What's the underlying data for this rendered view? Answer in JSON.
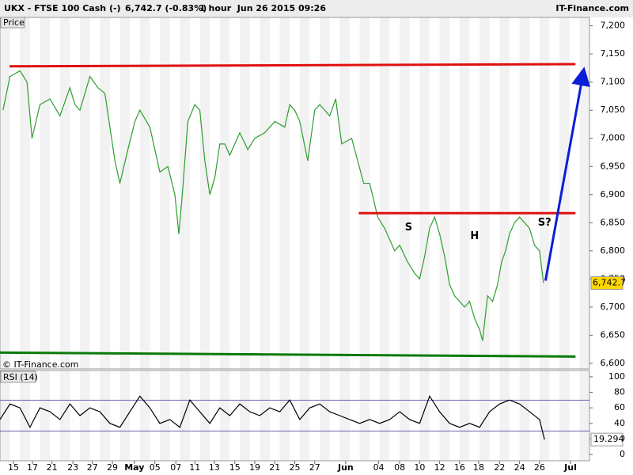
{
  "chart_data": [
    {
      "type": "line",
      "title": "UKX - FTSE 100 Cash (-)",
      "quote": "6,742.7 (-0.83%)",
      "timeframe": "1 hour  Jun 26 2015 09:26",
      "source": "IT-Finance.com",
      "panel_label": "Price",
      "watermark": "© IT-Finance.com",
      "xlim": [
        0,
        59
      ],
      "ylim": [
        6590,
        7215
      ],
      "yticks": [
        {
          "value": 6600,
          "label": "6,600"
        },
        {
          "value": 6650,
          "label": "6,650"
        },
        {
          "value": 6700,
          "label": "6,700"
        },
        {
          "value": 6750,
          "label": "6,750"
        },
        {
          "value": 6800,
          "label": "6,800"
        },
        {
          "value": 6850,
          "label": "6,850"
        },
        {
          "value": 6900,
          "label": "6,900"
        },
        {
          "value": 6950,
          "label": "6,950"
        },
        {
          "value": 7000,
          "label": "7,000"
        },
        {
          "value": 7050,
          "label": "7,050"
        },
        {
          "value": 7100,
          "label": "7,100"
        },
        {
          "value": 7150,
          "label": "7,150"
        },
        {
          "value": 7200,
          "label": "7,200"
        }
      ],
      "xticks": [
        {
          "value": 1.35,
          "label": "15"
        },
        {
          "value": 3.25,
          "label": "17"
        },
        {
          "value": 5.2,
          "label": "21"
        },
        {
          "value": 7.3,
          "label": "23"
        },
        {
          "value": 9.25,
          "label": "27"
        },
        {
          "value": 11.25,
          "label": "29"
        },
        {
          "value": 13.45,
          "label": "May"
        },
        {
          "value": 15.5,
          "label": "05"
        },
        {
          "value": 17.6,
          "label": "07"
        },
        {
          "value": 19.5,
          "label": "11"
        },
        {
          "value": 21.45,
          "label": "13"
        },
        {
          "value": 23.5,
          "label": "15"
        },
        {
          "value": 25.5,
          "label": "19"
        },
        {
          "value": 27.5,
          "label": "21"
        },
        {
          "value": 29.5,
          "label": "25"
        },
        {
          "value": 31.5,
          "label": "27"
        },
        {
          "value": 34.6,
          "label": "Jun"
        },
        {
          "value": 37.9,
          "label": "04"
        },
        {
          "value": 40,
          "label": "08"
        },
        {
          "value": 42,
          "label": "10"
        },
        {
          "value": 44,
          "label": "12"
        },
        {
          "value": 46,
          "label": "16"
        },
        {
          "value": 47.9,
          "label": "18"
        },
        {
          "value": 50,
          "label": "22"
        },
        {
          "value": 52,
          "label": "24"
        },
        {
          "value": 54,
          "label": "26"
        },
        {
          "value": 57.1,
          "label": "Jul"
        }
      ],
      "series": [
        {
          "color": "#2e9e2e",
          "x": [
            0.3,
            1,
            2,
            2.7,
            3.2,
            4,
            5,
            6,
            7,
            7.5,
            8,
            9,
            9.8,
            10.5,
            11.5,
            12,
            12.8,
            13.5,
            14,
            15,
            16,
            16.8,
            17.5,
            17.9,
            18.2,
            18.8,
            19.5,
            20,
            20.5,
            21,
            21.5,
            22,
            22.5,
            23,
            24,
            24.8,
            25.5,
            26.5,
            27.5,
            28.5,
            29,
            29.5,
            30,
            30.8,
            31.5,
            32,
            32.5,
            33,
            33.6,
            34.2,
            35.2,
            35.8,
            36.4,
            37,
            37.8,
            38.5,
            39,
            39.5,
            40,
            40.8,
            41.5,
            42,
            42.5,
            43,
            43.5,
            44,
            44.5,
            45,
            45.5,
            46,
            46.5,
            47,
            47.5,
            48,
            48.3,
            48.8,
            49.3,
            49.8,
            50.2,
            50.6,
            51,
            51.5,
            52,
            52.5,
            53,
            53.5,
            54,
            54.4
          ],
          "values": [
            7050,
            7110,
            7120,
            7100,
            7000,
            7060,
            7070,
            7040,
            7090,
            7060,
            7050,
            7110,
            7090,
            7080,
            6960,
            6920,
            6980,
            7030,
            7050,
            7020,
            6940,
            6950,
            6900,
            6830,
            6890,
            7030,
            7060,
            7050,
            6960,
            6900,
            6930,
            6990,
            6990,
            6970,
            7010,
            6980,
            7000,
            7010,
            7030,
            7020,
            7060,
            7050,
            7030,
            6960,
            7050,
            7060,
            7050,
            7040,
            7070,
            6990,
            7000,
            6960,
            6920,
            6920,
            6860,
            6840,
            6820,
            6800,
            6810,
            6780,
            6760,
            6750,
            6790,
            6840,
            6860,
            6830,
            6790,
            6740,
            6720,
            6710,
            6700,
            6710,
            6680,
            6660,
            6640,
            6720,
            6710,
            6740,
            6780,
            6800,
            6830,
            6850,
            6860,
            6850,
            6840,
            6810,
            6800,
            6742.7
          ]
        }
      ],
      "last_price": {
        "value": 6742.7,
        "label": "6,742.7"
      },
      "lines": [
        {
          "color": "#e01010",
          "x": [
            0.95,
            57.6
          ],
          "y": [
            7128,
            7132
          ]
        },
        {
          "color": "#e01010",
          "x": [
            35.9,
            57.6
          ],
          "y": [
            6867,
            6867
          ]
        },
        {
          "color": "#0a7a0a",
          "x": [
            0,
            57.6
          ],
          "y": [
            6619,
            6612
          ]
        }
      ],
      "arrow": {
        "color": "#0a1ed8",
        "x": [
          54.6,
          58.4
        ],
        "y": [
          6747,
          7119
        ]
      },
      "annotations": [
        {
          "text": "S",
          "x": 40.9,
          "y": 6841,
          "color": "#0a1ed8"
        },
        {
          "text": "H",
          "x": 47.5,
          "y": 6826,
          "color": "#0a1ed8"
        },
        {
          "text": "S?",
          "x": 54.5,
          "y": 6850,
          "color": "#0a1ed8"
        }
      ]
    },
    {
      "type": "line",
      "title": "RSI (14)",
      "xlim": [
        0,
        59
      ],
      "ylim": [
        -8,
        108
      ],
      "yticks": [
        0,
        20,
        40,
        60,
        80,
        100
      ],
      "levels": [
        30,
        70
      ],
      "series": [
        {
          "color": "#000000",
          "x": [
            0,
            1,
            2,
            3,
            4,
            5,
            6,
            7,
            8,
            9,
            10,
            11,
            12,
            13,
            14,
            15,
            16,
            17,
            18,
            19,
            20,
            21,
            22,
            23,
            24,
            25,
            26,
            27,
            28,
            29,
            30,
            31,
            32,
            33,
            34,
            35,
            36,
            37,
            38,
            39,
            40,
            41,
            42,
            43,
            44,
            45,
            46,
            47,
            48,
            49,
            50,
            51,
            52,
            53,
            54,
            54.5
          ],
          "values": [
            45,
            65,
            60,
            35,
            60,
            55,
            45,
            65,
            50,
            60,
            55,
            40,
            35,
            55,
            75,
            60,
            40,
            45,
            35,
            70,
            55,
            40,
            60,
            50,
            65,
            55,
            50,
            60,
            55,
            70,
            45,
            60,
            65,
            55,
            50,
            45,
            40,
            45,
            40,
            45,
            55,
            45,
            40,
            75,
            55,
            40,
            35,
            40,
            35,
            55,
            65,
            70,
            65,
            55,
            45,
            19.294
          ]
        }
      ],
      "last_value": 19.294
    }
  ]
}
